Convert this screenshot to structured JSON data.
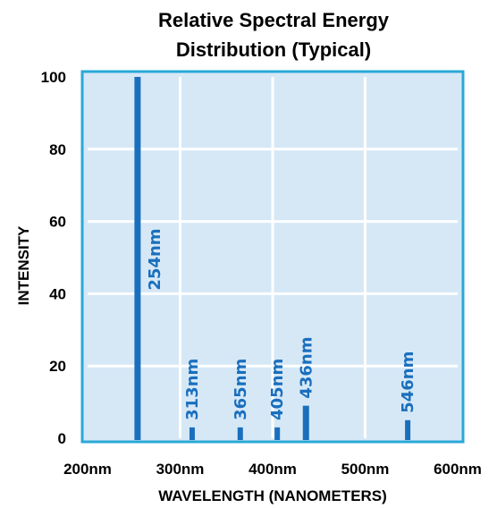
{
  "chart_data": {
    "type": "bar",
    "title_line1": "Relative Spectral Energy",
    "title_line2": "Distribution (Typical)",
    "xlabel": "WAVELENGTH (NANOMETERS)",
    "ylabel": "INTENSITY",
    "xlim": [
      200,
      600
    ],
    "ylim": [
      0,
      100
    ],
    "x_ticks": [
      {
        "value": 200,
        "label": "200nm"
      },
      {
        "value": 300,
        "label": "300nm"
      },
      {
        "value": 400,
        "label": "400nm"
      },
      {
        "value": 500,
        "label": "500nm"
      },
      {
        "value": 600,
        "label": "600nm"
      }
    ],
    "y_ticks": [
      {
        "value": 0,
        "label": "0"
      },
      {
        "value": 20,
        "label": "20"
      },
      {
        "value": 40,
        "label": "40"
      },
      {
        "value": 60,
        "label": "60"
      },
      {
        "value": 80,
        "label": "80"
      },
      {
        "value": 100,
        "label": "100"
      }
    ],
    "peaks": [
      {
        "wavelength": 254,
        "intensity": 100,
        "label": "254nm"
      },
      {
        "wavelength": 313,
        "intensity": 3,
        "label": "313nm"
      },
      {
        "wavelength": 365,
        "intensity": 3,
        "label": "365nm"
      },
      {
        "wavelength": 405,
        "intensity": 3,
        "label": "405nm"
      },
      {
        "wavelength": 436,
        "intensity": 9,
        "label": "436nm"
      },
      {
        "wavelength": 546,
        "intensity": 5,
        "label": "546nm"
      }
    ],
    "grid": true,
    "colors": {
      "plot_background": "#d6e8f6",
      "frame": "#2aa8d8",
      "grid": "#ffffff",
      "bar": "#1a6fbd",
      "label": "#1a6fbd"
    }
  }
}
